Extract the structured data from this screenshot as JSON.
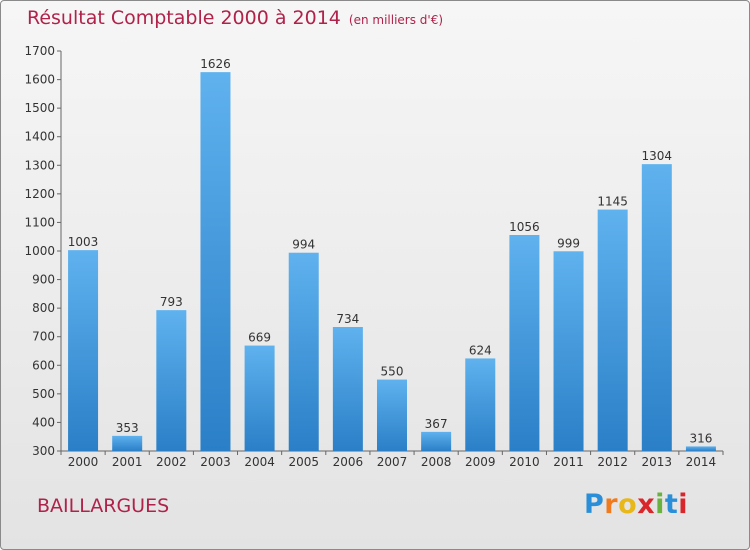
{
  "header": {
    "title": "Résultat Comptable 2000 à 2014",
    "subtitle": "(en milliers d'€)"
  },
  "footer": {
    "location": "BAILLARGUES",
    "logo_letters": [
      "P",
      "r",
      "o",
      "x",
      "i",
      "t",
      "i"
    ]
  },
  "colors": {
    "bar_top": "#5fb2ee",
    "bar_bottom": "#2a7fc7",
    "title": "#b0224a"
  },
  "chart_data": {
    "type": "bar",
    "categories": [
      "2000",
      "2001",
      "2002",
      "2003",
      "2004",
      "2005",
      "2006",
      "2007",
      "2008",
      "2009",
      "2010",
      "2011",
      "2012",
      "2013",
      "2014"
    ],
    "values": [
      1003,
      353,
      793,
      1626,
      669,
      994,
      734,
      550,
      367,
      624,
      1056,
      999,
      1145,
      1304,
      316
    ],
    "ylim": [
      300,
      1700
    ],
    "yticks": [
      300,
      400,
      500,
      600,
      700,
      800,
      900,
      1000,
      1100,
      1200,
      1300,
      1400,
      1500,
      1600,
      1700
    ],
    "grid": false,
    "title": "Résultat Comptable 2000 à 2014",
    "xlabel": "",
    "ylabel": ""
  }
}
